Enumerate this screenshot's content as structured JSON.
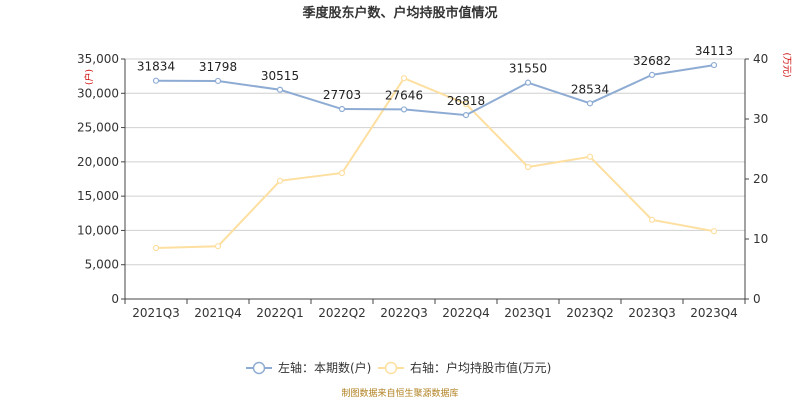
{
  "chart_data": {
    "type": "line",
    "title": "季度股东户数、户均持股市值情况",
    "categories": [
      "2021Q3",
      "2021Q4",
      "2022Q1",
      "2022Q2",
      "2022Q3",
      "2022Q4",
      "2023Q1",
      "2023Q2",
      "2023Q3",
      "2023Q4"
    ],
    "left_axis": {
      "unit": "(户)",
      "ylim": [
        0,
        35000
      ],
      "ticks": [
        "0",
        "5,000",
        "10,000",
        "15,000",
        "20,000",
        "25,000",
        "30,000",
        "35,000"
      ]
    },
    "right_axis": {
      "unit": "(万元)",
      "ylim": [
        0,
        40
      ],
      "ticks": [
        "0",
        "10",
        "20",
        "30",
        "40"
      ]
    },
    "series": [
      {
        "name": "左轴：本期数(户)",
        "axis": "left",
        "color": "#8eacd3",
        "values": [
          31834,
          31798,
          30515,
          27703,
          27646,
          26818,
          31550,
          28534,
          32682,
          34113
        ],
        "labels": [
          "31834",
          "31798",
          "30515",
          "27703",
          "27646",
          "26818",
          "31550",
          "28534",
          "32682",
          "34113"
        ]
      },
      {
        "name": "右轴：户均持股市值(万元)",
        "axis": "right",
        "color": "#fddfa0",
        "values": [
          8.5,
          8.8,
          19.7,
          21.0,
          36.8,
          32.5,
          22.0,
          23.7,
          13.2,
          11.3
        ]
      }
    ],
    "grid": true,
    "legend_position": "bottom"
  },
  "footer": {
    "source": "制图数据来自恒生聚源数据库"
  }
}
